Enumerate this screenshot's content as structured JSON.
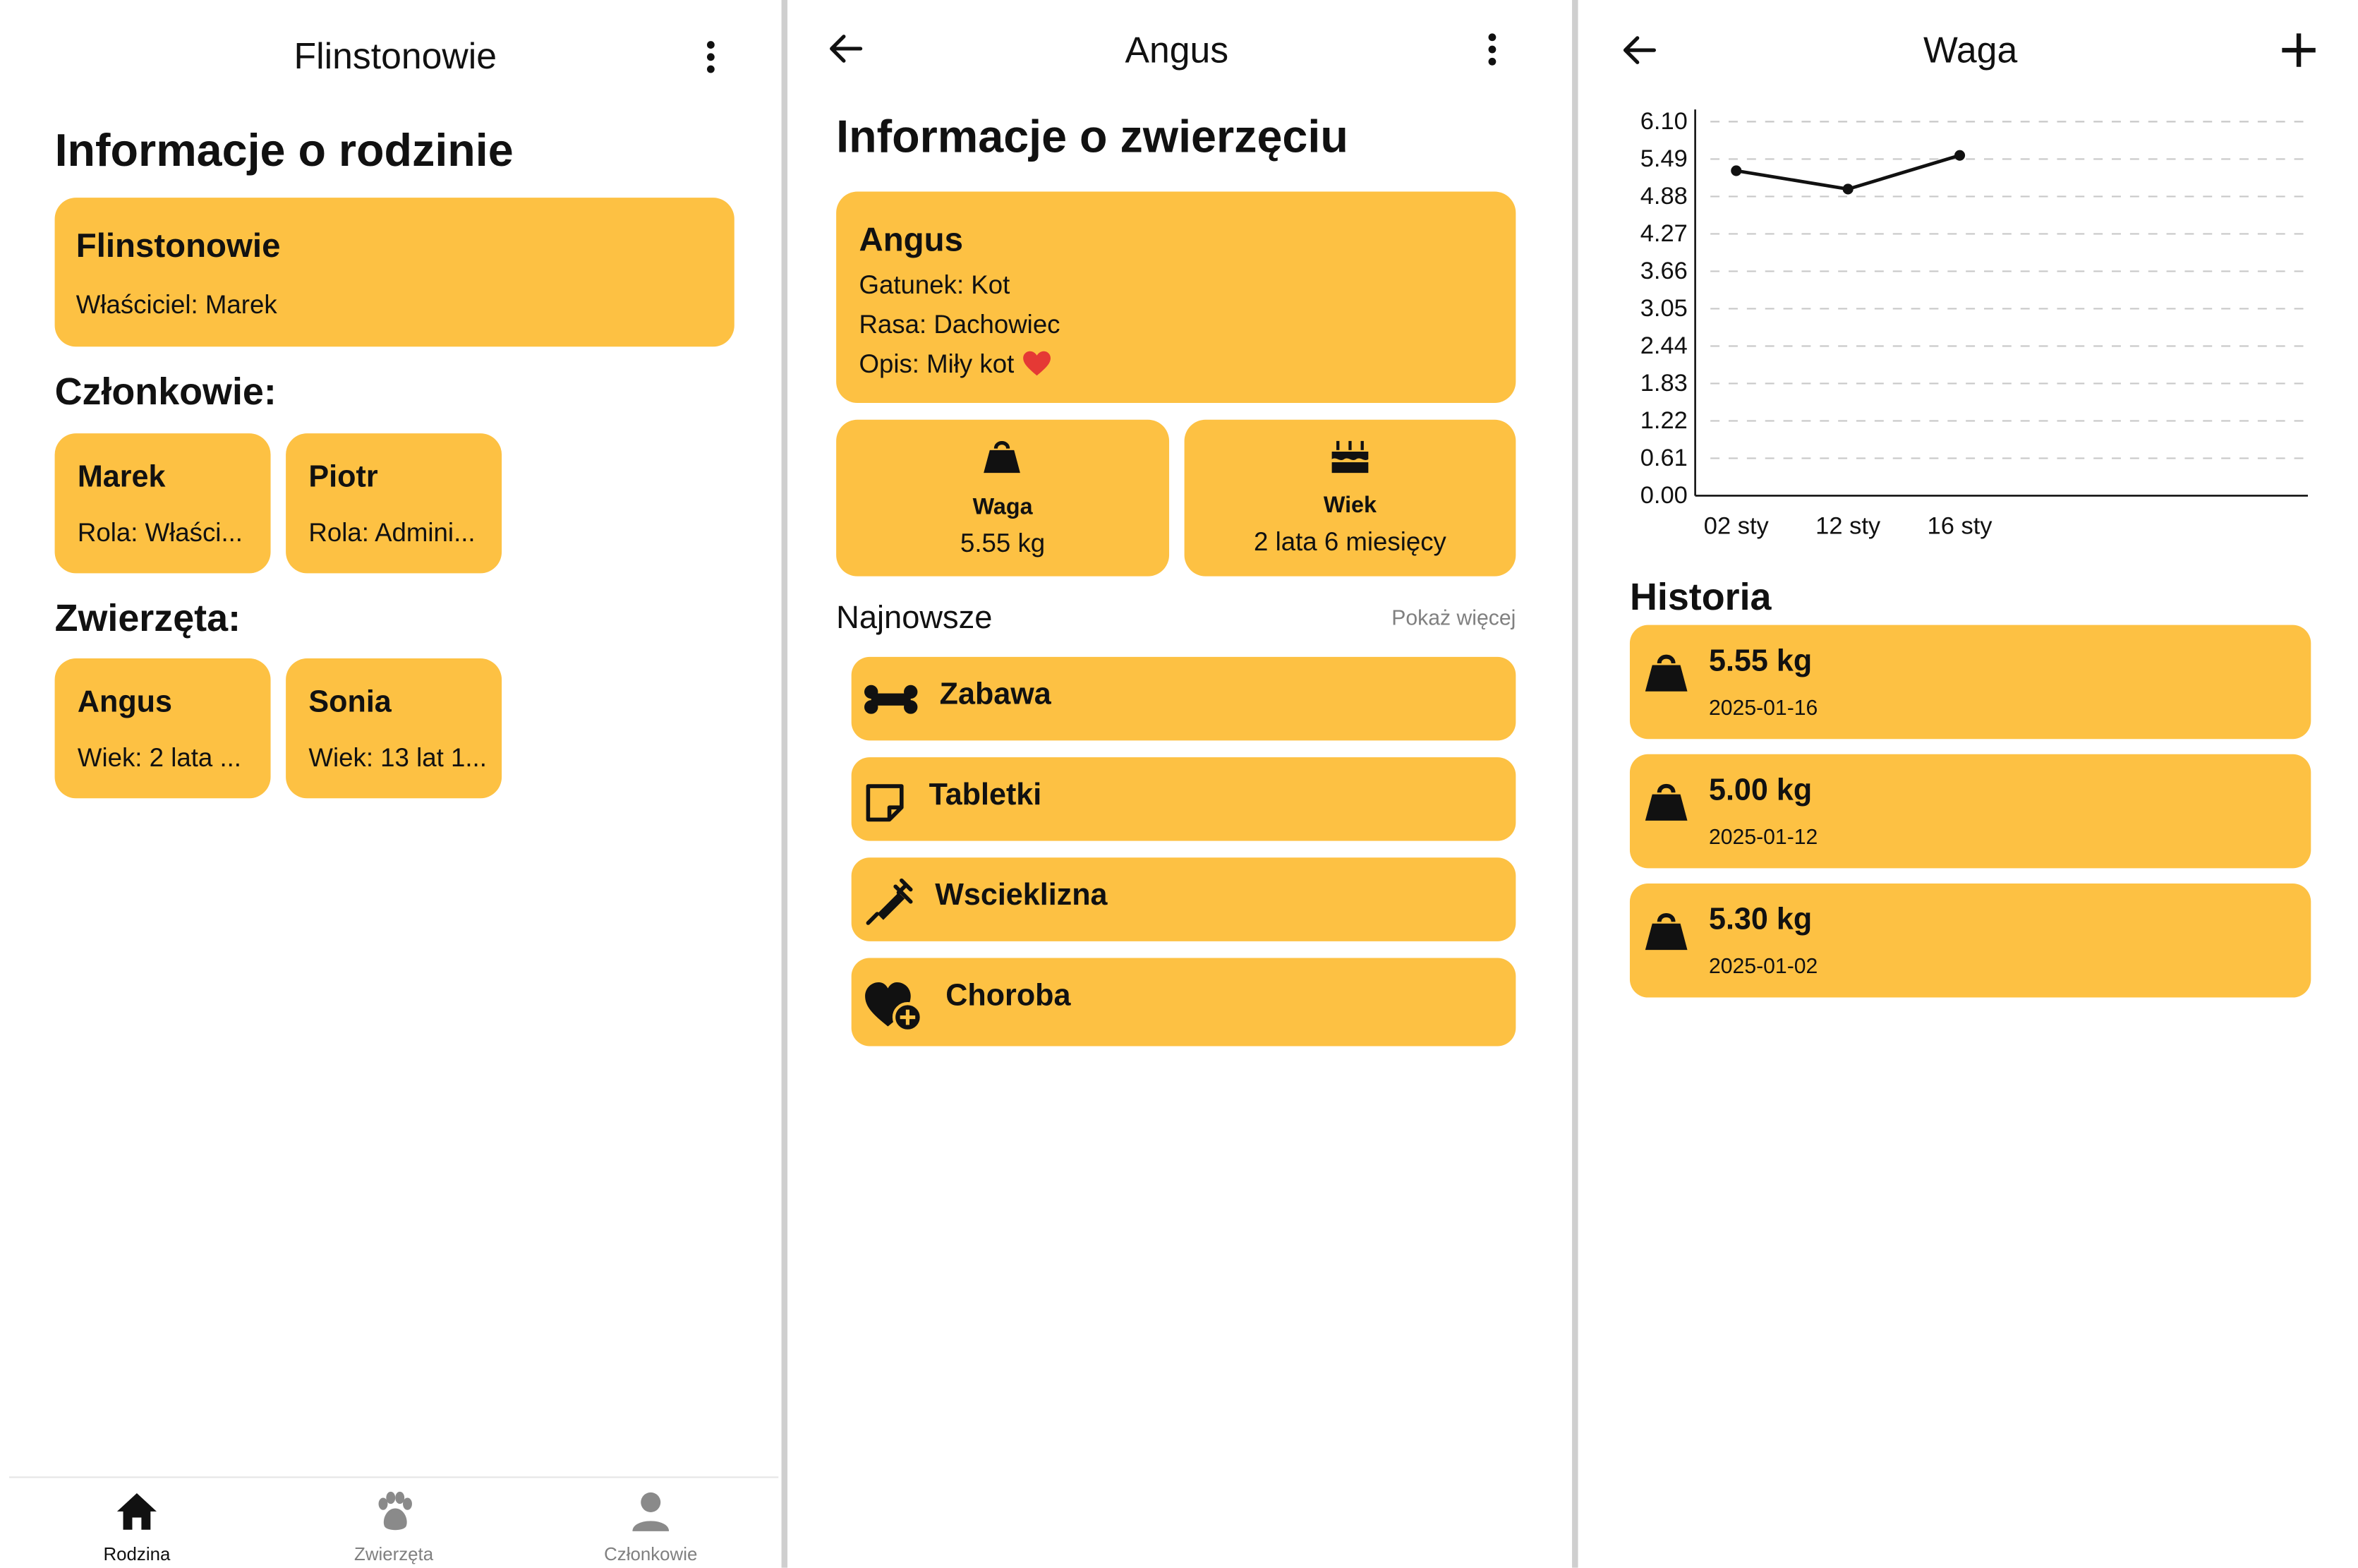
{
  "screen1": {
    "title": "Flinstonowie",
    "heading": "Informacje o rodzinie",
    "family_card": {
      "name": "Flinstonowie",
      "owner": "Właściciel: Marek"
    },
    "members_heading": "Członkowie:",
    "members": [
      {
        "name": "Marek",
        "detail": "Rola: Właści..."
      },
      {
        "name": "Piotr",
        "detail": "Rola: Admini..."
      }
    ],
    "pets_heading": "Zwierzęta:",
    "pets": [
      {
        "name": "Angus",
        "detail": "Wiek: 2 lata ..."
      },
      {
        "name": "Sonia",
        "detail": "Wiek: 13 lat 1..."
      }
    ],
    "nav": [
      {
        "label": "Rodzina",
        "icon": "home-icon",
        "active": true
      },
      {
        "label": "Zwierzęta",
        "icon": "paw-icon",
        "active": false
      },
      {
        "label": "Członkowie",
        "icon": "person-icon",
        "active": false
      }
    ]
  },
  "screen2": {
    "title": "Angus",
    "heading": "Informacje o zwierzęciu",
    "pet_card": {
      "name": "Angus",
      "species": "Gatunek: Kot",
      "breed": "Rasa: Dachowiec",
      "description": "Opis: Miły kot",
      "description_emoji": "heart-icon"
    },
    "weight_tile": {
      "label": "Waga",
      "value": "5.55 kg",
      "icon": "weight-icon"
    },
    "age_tile": {
      "label": "Wiek",
      "value": "2 lata 6 miesięcy",
      "icon": "cake-icon"
    },
    "recent_heading": "Najnowsze",
    "show_more": "Pokaż więcej",
    "events": [
      {
        "label": "Zabawa",
        "icon": "bone-icon"
      },
      {
        "label": "Tabletki",
        "icon": "note-icon"
      },
      {
        "label": "Wscieklizna",
        "icon": "syringe-icon"
      },
      {
        "label": "Choroba",
        "icon": "heart-plus-icon"
      }
    ]
  },
  "screen3": {
    "title": "Waga",
    "history_heading": "Historia",
    "history": [
      {
        "value": "5.55 kg",
        "date": "2025-01-16"
      },
      {
        "value": "5.00 kg",
        "date": "2025-01-12"
      },
      {
        "value": "5.30 kg",
        "date": "2025-01-02"
      }
    ]
  },
  "colors": {
    "accent": "#fdc143",
    "text": "#111111",
    "muted": "#808080",
    "heart": "#e53935"
  },
  "chart_data": {
    "type": "line",
    "title": "",
    "xlabel": "",
    "ylabel": "",
    "categories": [
      "02 sty",
      "12 sty",
      "16 sty"
    ],
    "series": [
      {
        "values": [
          5.3,
          5.0,
          5.55
        ]
      }
    ],
    "yticks": [
      "0.00",
      "0.61",
      "1.22",
      "1.83",
      "2.44",
      "3.05",
      "3.66",
      "4.27",
      "4.88",
      "5.49",
      "6.10"
    ],
    "ylim": [
      0,
      6.1
    ],
    "grid": true,
    "grid_style": "dashed-horizontal"
  }
}
